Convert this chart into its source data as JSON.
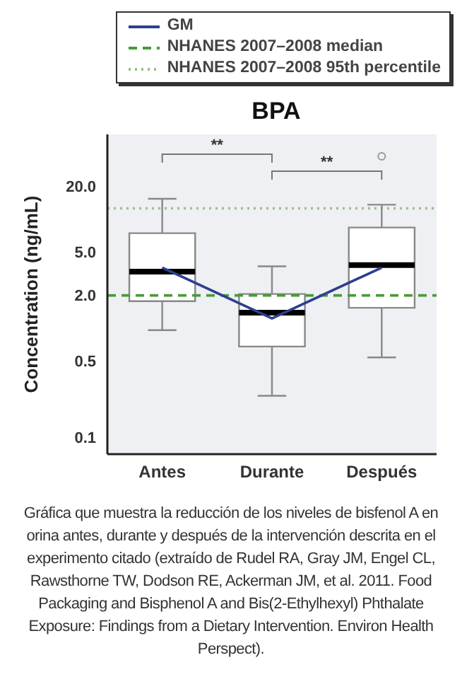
{
  "chart_data": {
    "type": "box",
    "title": "BPA",
    "ylabel": "Concentration (ng/mL)",
    "categories": [
      "Antes",
      "Durante",
      "Después"
    ],
    "boxes": [
      {
        "low": 0.96,
        "q1": 1.77,
        "median": 3.3,
        "q3": 7.45,
        "high": 15.4
      },
      {
        "low": 0.24,
        "q1": 0.68,
        "median": 1.39,
        "q3": 2.06,
        "high": 3.7
      },
      {
        "low": 0.54,
        "q1": 1.54,
        "median": 3.8,
        "q3": 8.4,
        "high": 13.6,
        "outliers": [
          37.7
        ]
      }
    ],
    "series": [
      {
        "name": "GM",
        "type": "line",
        "color": "#2e3f8f",
        "values": [
          3.6,
          1.23,
          3.6
        ]
      }
    ],
    "ref_lines": [
      {
        "axis": "y",
        "value": 2.0,
        "label": "NHANES 2007–2008 median",
        "color": "#4a9a3a",
        "line_style": "dashed"
      },
      {
        "axis": "y",
        "value": 12.6,
        "label": "NHANES 2007–2008 95th percentile",
        "color": "#9cbf8c",
        "line_style": "dotted"
      }
    ],
    "log": true,
    "ylim": [
      0.07,
      60
    ],
    "yticks": [
      0.1,
      0.5,
      {
        "value": 2,
        "label": "2.0"
      },
      {
        "value": 5,
        "label": "5.0"
      },
      {
        "value": 20,
        "label": "20.0"
      }
    ],
    "legend": "top",
    "annotations": [
      "**",
      "**",
      "Gráfica que muestra la reducción de los niveles de bisfenol A en orina antes, durante y después de la intervención descrita en el experimento citado (extraído de Rudel RA, Gray JM, Engel CL, Rawsthorne TW, Dodson RE, Ackerman JM, et al. 2011. Food Packaging and Bisphenol A and Bis(2-Ethylhexyl) Phthalate Exposure: Findings from a Dietary Intervention. Environ Health Perspect)."
    ]
  }
}
